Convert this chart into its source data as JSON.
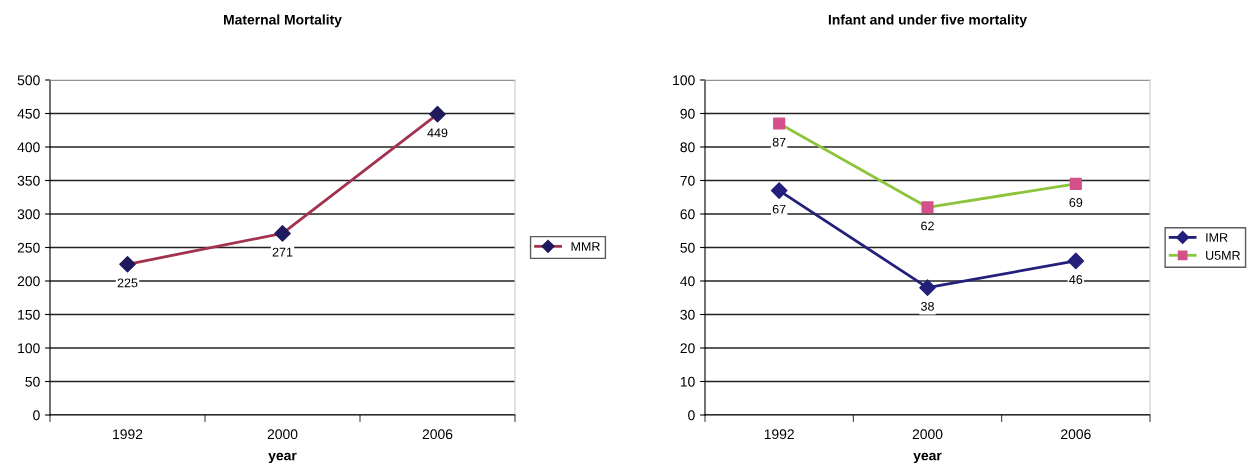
{
  "chart_data": [
    {
      "type": "line",
      "title": "Maternal Mortality",
      "xlabel": "year",
      "categories": [
        "1992",
        "2000",
        "2006"
      ],
      "series": [
        {
          "name": "MMR",
          "color": "#a3324e",
          "colors": [
            "#1f1a5c",
            "#1f1a5c",
            "#1f1a5c"
          ],
          "marker": "diamond",
          "values": [
            225,
            271,
            449
          ]
        }
      ],
      "ylim": [
        0,
        500
      ],
      "yticks": [
        0,
        50,
        100,
        150,
        200,
        250,
        300,
        350,
        400,
        450,
        500
      ],
      "grid": "y",
      "legend": "right",
      "data_labels": true
    },
    {
      "type": "line",
      "title": "Infant and under five mortality",
      "xlabel": "year",
      "categories": [
        "1992",
        "2000",
        "2006"
      ],
      "series": [
        {
          "name": "IMR",
          "color": "#22207a",
          "colors": [
            "#22207a",
            "#22207a",
            "#22207a"
          ],
          "marker": "diamond",
          "values": [
            67,
            38,
            46
          ]
        },
        {
          "name": "U5MR",
          "color": "#8cc43c",
          "colors": [
            "#d4508a",
            "#d4508a",
            "#d4508a"
          ],
          "marker": "square",
          "values": [
            87,
            62,
            69
          ]
        }
      ],
      "ylim": [
        0,
        100
      ],
      "yticks": [
        0,
        10,
        20,
        30,
        40,
        50,
        60,
        70,
        80,
        90,
        100
      ],
      "grid": "y",
      "legend": "right",
      "data_labels": true
    }
  ]
}
